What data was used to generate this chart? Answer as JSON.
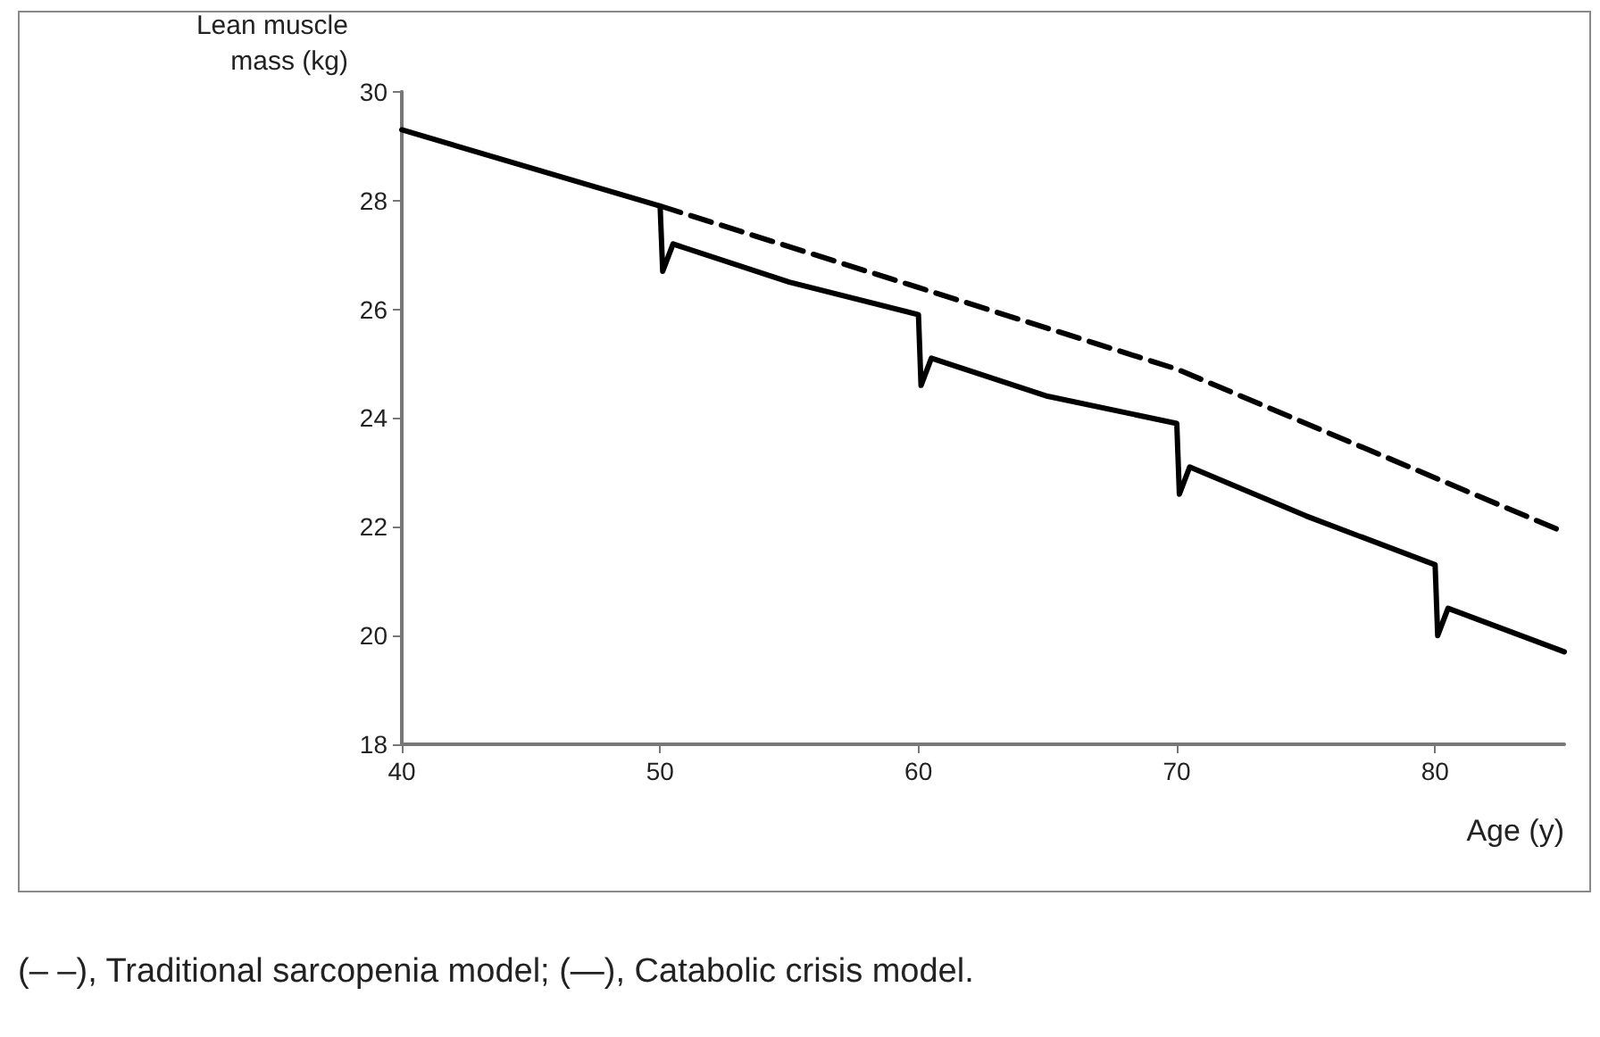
{
  "chart_data": {
    "type": "line",
    "ylabel": "Lean muscle\nmass (kg)",
    "xlabel": "Age (y)",
    "annotations": [
      "(– –), Traditional sarcopenia model; (—), Catabolic crisis model."
    ],
    "xlim": [
      40,
      85
    ],
    "xticks": [
      40,
      50,
      60,
      70,
      80
    ],
    "ylim": [
      18,
      30
    ],
    "yticks": [
      18,
      20,
      22,
      24,
      26,
      28,
      30
    ],
    "marker": "none",
    "series": [
      {
        "color": "#000000",
        "line_style": "dashed",
        "x": [
          50,
          60,
          70,
          80,
          85
        ],
        "values": [
          27.9,
          26.4,
          24.9,
          22.9,
          21.9
        ]
      },
      {
        "color": "#000000",
        "line_style": "solid",
        "x": [
          40,
          50,
          50.1,
          50.5,
          55,
          60,
          60.1,
          60.5,
          65,
          70,
          70.1,
          70.5,
          75,
          80,
          80.1,
          80.5,
          85
        ],
        "values": [
          29.3,
          27.9,
          26.7,
          27.2,
          26.5,
          25.9,
          24.6,
          25.1,
          24.4,
          23.9,
          22.6,
          23.1,
          22.2,
          21.3,
          20.0,
          20.5,
          19.7
        ]
      }
    ]
  }
}
